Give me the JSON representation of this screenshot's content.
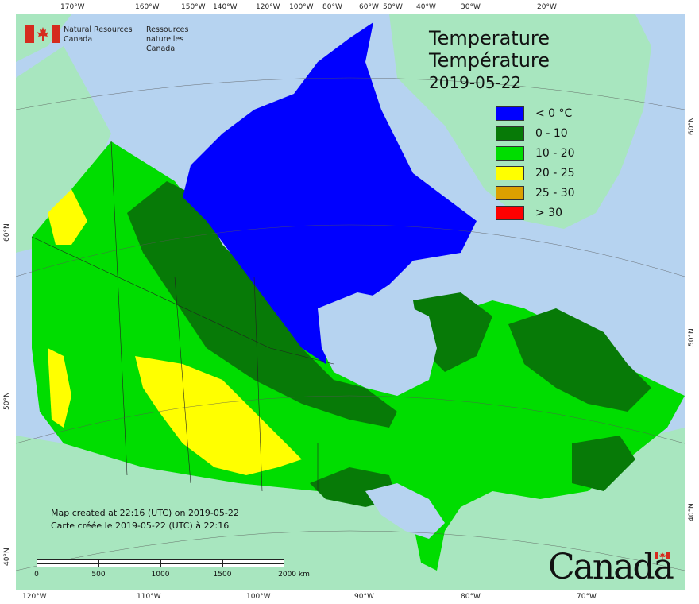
{
  "agency": {
    "name_en_line1": "Natural Resources",
    "name_en_line2": "Canada",
    "name_fr_line1": "Ressources naturelles",
    "name_fr_line2": "Canada"
  },
  "title": {
    "en": "Temperature",
    "fr": "Température",
    "date": "2019-05-22"
  },
  "legend": [
    {
      "label": "< 0 °C",
      "color": "#0000ff"
    },
    {
      "label": "0 - 10",
      "color": "#077a07"
    },
    {
      "label": "10 - 20",
      "color": "#00dd00"
    },
    {
      "label": "20 - 25",
      "color": "#ffff00"
    },
    {
      "label": "25 - 30",
      "color": "#dca000"
    },
    {
      "label": "> 30",
      "color": "#ff0000"
    }
  ],
  "credits": {
    "line_en": "Map created at 22:16 (UTC) on 2019-05-22",
    "line_fr": "Carte créée le 2019-05-22 (UTC) à 22:16"
  },
  "scalebar": {
    "ticks": [
      "0",
      "500",
      "1000",
      "1500",
      "2000 km"
    ]
  },
  "axes": {
    "top": [
      "170°W",
      "160°W",
      "150°W",
      "140°W",
      "120°W",
      "100°W",
      "80°W",
      "60°W",
      "50°W",
      "40°W",
      "30°W",
      "20°W"
    ],
    "bottom": [
      "120°W",
      "110°W",
      "100°W",
      "90°W",
      "80°W",
      "70°W"
    ],
    "left": [
      "60°N",
      "50°N",
      "40°N"
    ],
    "right": [
      "60°N",
      "50°N",
      "40°N"
    ]
  },
  "wordmark": "Canada",
  "colors": {
    "water": "#b6d3f0",
    "other_land": "#a8e6bf",
    "cold": "#0000ff",
    "cool": "#077a07",
    "mild": "#00dd00",
    "warm": "#ffff00",
    "flag_red": "#d52b1e"
  }
}
